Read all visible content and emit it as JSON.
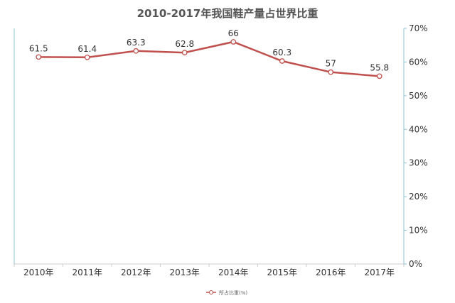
{
  "colors": {
    "series": "#c0504d",
    "left_axis": "#8ec3d6",
    "right_axis": "#8ec3d6",
    "x_axis": "#cccccc",
    "marker_fill": "#ffffff"
  },
  "chart_data": {
    "type": "line",
    "title": "2010-2017年我国鞋产量占世界比重",
    "categories": [
      "2010年",
      "2011年",
      "2012年",
      "2013年",
      "2014年",
      "2015年",
      "2016年",
      "2017年"
    ],
    "series": [
      {
        "name": "所占比重(%)",
        "values": [
          61.5,
          61.4,
          63.3,
          62.8,
          66,
          60.3,
          57,
          55.8
        ],
        "data_labels": [
          "61.5",
          "61.4",
          "63.3",
          "62.8",
          "66",
          "60.3",
          "57",
          "55.8"
        ]
      }
    ],
    "y_axis": {
      "position": "right",
      "ylim": [
        0,
        70
      ],
      "ticks": [
        0,
        10,
        20,
        30,
        40,
        50,
        60,
        70
      ],
      "tick_labels": [
        "0%",
        "10%",
        "20%",
        "30%",
        "40%",
        "50%",
        "60%",
        "70%"
      ]
    },
    "grid": false,
    "legend": "bottom-center"
  }
}
